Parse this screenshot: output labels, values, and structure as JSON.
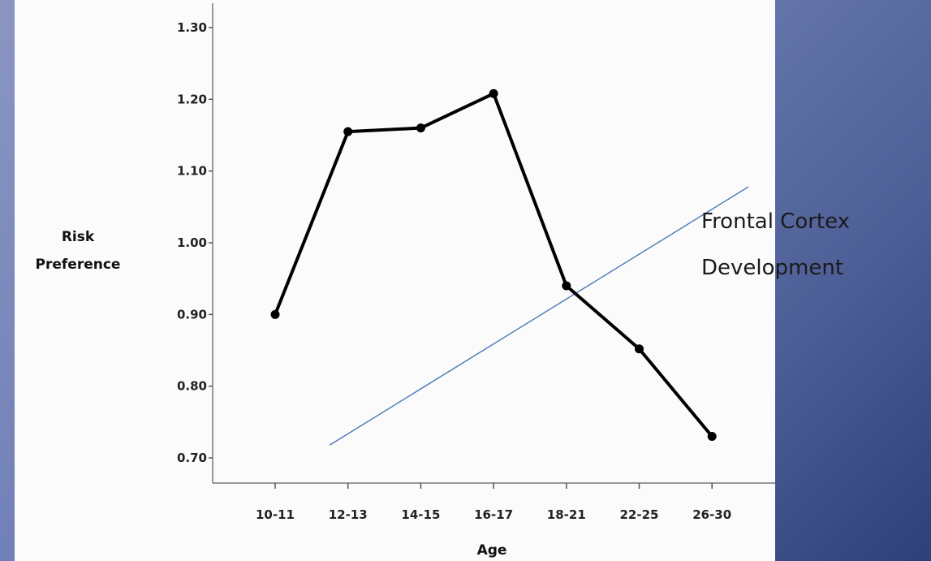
{
  "chart_data": {
    "type": "line",
    "categories": [
      "10-11",
      "12-13",
      "14-15",
      "16-17",
      "18-21",
      "22-25",
      "26-30"
    ],
    "series": [
      {
        "values": [
          0.9,
          1.155,
          1.16,
          1.208,
          0.94,
          0.852,
          0.73
        ],
        "color": "#000000"
      }
    ],
    "trend_line": {
      "from": [
        0.75,
        0.718
      ],
      "to": [
        6.5,
        1.078
      ],
      "color": "#4a7ab5"
    },
    "yticks": [
      "0.70",
      "0.80",
      "0.90",
      "1.00",
      "1.10",
      "1.20",
      "1.30"
    ],
    "ylim": [
      0.7,
      1.3
    ],
    "xlabel": "Age",
    "ylabel_lines": [
      "Risk",
      "Preference"
    ],
    "annotation_lines": [
      "Frontal Cortex",
      "Development"
    ],
    "grid": false
  }
}
